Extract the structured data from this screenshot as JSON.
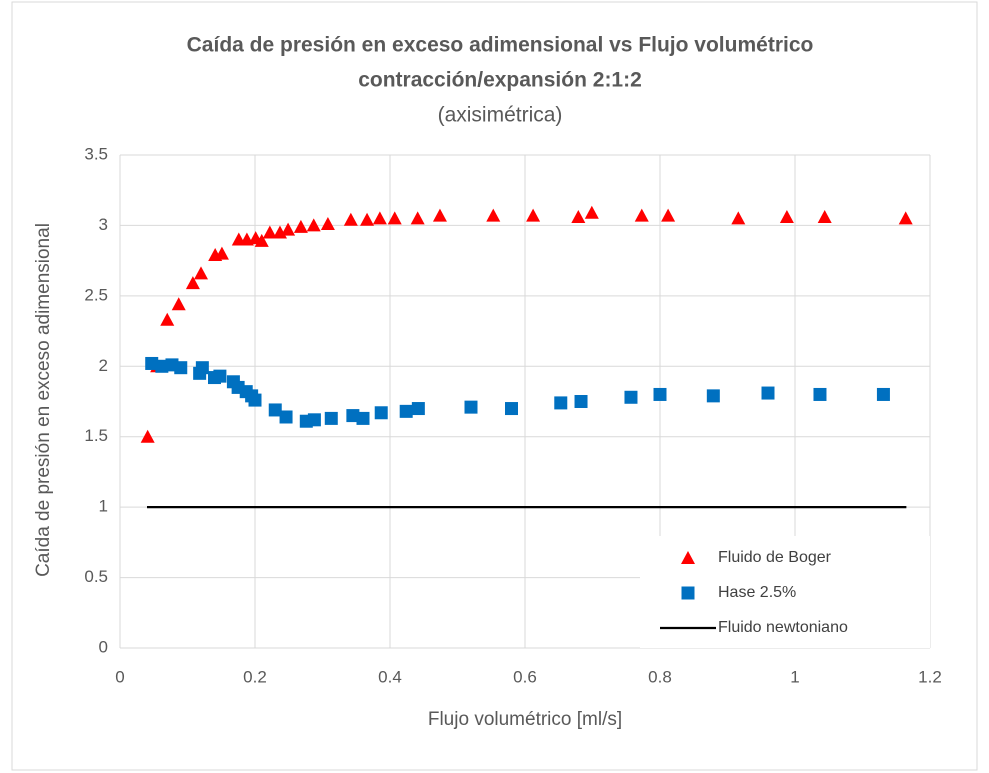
{
  "chart_data": {
    "type": "scatter",
    "title": [
      "Caída de presión en exceso adimensional vs Flujo volumétrico",
      "contracción/expansión 2:1:2"
    ],
    "subtitle": "(axisimétrica)",
    "x_label": "Flujo volumétrico [ml/s]",
    "y_label": "Caída de presión en exceso adimensional",
    "xlim": [
      0,
      1.2
    ],
    "xticks": [
      0,
      0.2,
      0.4,
      0.6,
      0.8,
      1,
      1.2
    ],
    "ylim": [
      0,
      3.5
    ],
    "yticks": [
      0,
      0.5,
      1,
      1.5,
      2,
      2.5,
      3,
      3.5
    ],
    "grid": true,
    "legend": "lower right",
    "series": [
      {
        "name": "Fluido de Boger",
        "color": "#ff0000",
        "marker": "triangle",
        "x": [
          0.041,
          0.055,
          0.07,
          0.087,
          0.108,
          0.12,
          0.141,
          0.151,
          0.176,
          0.188,
          0.201,
          0.21,
          0.222,
          0.237,
          0.249,
          0.268,
          0.287,
          0.308,
          0.342,
          0.366,
          0.385,
          0.407,
          0.441,
          0.474,
          0.553,
          0.612,
          0.679,
          0.699,
          0.773,
          0.812,
          0.916,
          0.988,
          1.044,
          1.164
        ],
        "values": [
          1.5,
          2.0,
          2.33,
          2.44,
          2.59,
          2.66,
          2.79,
          2.8,
          2.9,
          2.9,
          2.91,
          2.89,
          2.95,
          2.95,
          2.97,
          2.99,
          3.0,
          3.01,
          3.04,
          3.04,
          3.05,
          3.05,
          3.05,
          3.07,
          3.07,
          3.07,
          3.06,
          3.09,
          3.07,
          3.07,
          3.05,
          3.06,
          3.06,
          3.05
        ]
      },
      {
        "name": "Hase 2.5%",
        "color": "#0070c0",
        "marker": "square",
        "x": [
          0.047,
          0.062,
          0.077,
          0.09,
          0.118,
          0.122,
          0.14,
          0.148,
          0.168,
          0.175,
          0.187,
          0.195,
          0.2,
          0.23,
          0.246,
          0.276,
          0.288,
          0.313,
          0.345,
          0.36,
          0.387,
          0.424,
          0.442,
          0.52,
          0.58,
          0.653,
          0.683,
          0.757,
          0.8,
          0.879,
          0.96,
          1.037,
          1.131
        ],
        "values": [
          2.02,
          2.0,
          2.01,
          1.99,
          1.95,
          1.99,
          1.92,
          1.93,
          1.89,
          1.85,
          1.82,
          1.79,
          1.76,
          1.69,
          1.64,
          1.61,
          1.62,
          1.63,
          1.65,
          1.63,
          1.67,
          1.68,
          1.7,
          1.71,
          1.7,
          1.74,
          1.75,
          1.78,
          1.8,
          1.79,
          1.81,
          1.8,
          1.8
        ]
      },
      {
        "name": "Fluido newtoniano",
        "color": "#000000",
        "marker": "line",
        "x": [
          0.04,
          1.165
        ],
        "values": [
          1,
          1
        ]
      }
    ]
  }
}
